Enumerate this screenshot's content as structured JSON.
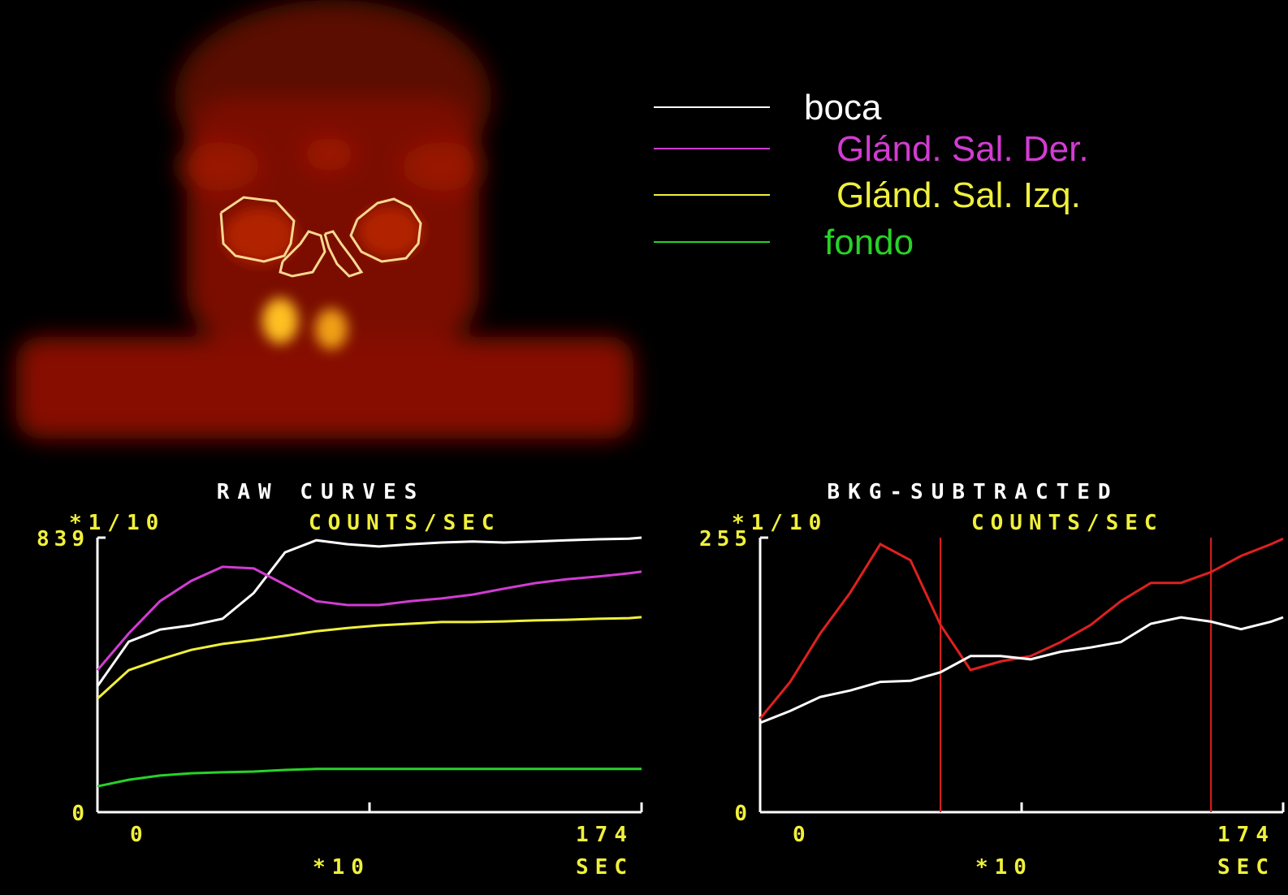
{
  "legend": {
    "items": [
      {
        "label": "boca",
        "color": "#ffffff"
      },
      {
        "label": "Glánd. Sal. Der.",
        "color": "#d23cd2"
      },
      {
        "label": "Glánd. Sal. Izq.",
        "color": "#f0f03c"
      },
      {
        "label": "fondo",
        "color": "#28d228"
      }
    ]
  },
  "chart_data": [
    {
      "type": "line",
      "title": "RAW CURVES",
      "y_unit": "*1/10",
      "y_label": "COUNTS/SEC",
      "x_unit": "*10",
      "x_label": "SEC",
      "xlim": [
        0,
        174
      ],
      "ylim": [
        0,
        839
      ],
      "xticks": [
        0,
        174
      ],
      "yticks": [
        0,
        839
      ],
      "x": [
        0,
        10,
        20,
        30,
        40,
        50,
        60,
        70,
        80,
        90,
        100,
        110,
        120,
        130,
        140,
        150,
        160,
        170,
        174
      ],
      "series": [
        {
          "color": "#ffffff",
          "values": [
            385,
            521,
            558,
            571,
            591,
            670,
            794,
            831,
            819,
            812,
            819,
            824,
            827,
            824,
            827,
            831,
            834,
            836,
            839
          ]
        },
        {
          "color": "#d23cd2",
          "values": [
            434,
            546,
            645,
            707,
            750,
            745,
            695,
            645,
            633,
            633,
            645,
            653,
            665,
            683,
            700,
            712,
            720,
            730,
            735
          ]
        },
        {
          "color": "#f0f03c",
          "values": [
            347,
            434,
            467,
            496,
            514,
            526,
            539,
            553,
            563,
            571,
            576,
            581,
            581,
            583,
            586,
            588,
            591,
            593,
            596
          ]
        },
        {
          "color": "#28d228",
          "values": [
            79,
            99,
            112,
            119,
            122,
            124,
            129,
            132,
            132,
            132,
            132,
            132,
            132,
            132,
            132,
            132,
            132,
            132,
            132
          ]
        }
      ]
    },
    {
      "type": "line",
      "title": "BKG-SUBTRACTED",
      "y_unit": "*1/10",
      "y_label": "COUNTS/SEC",
      "x_unit": "*10",
      "x_label": "SEC",
      "xlim": [
        0,
        174
      ],
      "ylim": [
        0,
        255
      ],
      "xticks": [
        0,
        174
      ],
      "yticks": [
        0,
        255
      ],
      "x": [
        0,
        10,
        20,
        30,
        40,
        50,
        60,
        70,
        80,
        90,
        100,
        110,
        120,
        130,
        140,
        150,
        160,
        170,
        174
      ],
      "markers": {
        "color": "#e02020",
        "x": [
          60,
          150
        ]
      },
      "series": [
        {
          "color": "#e02020",
          "values": [
            87,
            121,
            166,
            204,
            249,
            234,
            174,
            132,
            140,
            145,
            158,
            174,
            196,
            213,
            213,
            223,
            238,
            249,
            254
          ]
        },
        {
          "color": "#ffffff",
          "values": [
            83,
            94,
            107,
            113,
            121,
            122,
            130,
            145,
            145,
            142,
            149,
            153,
            158,
            175,
            181,
            177,
            170,
            177,
            181
          ]
        }
      ]
    }
  ]
}
